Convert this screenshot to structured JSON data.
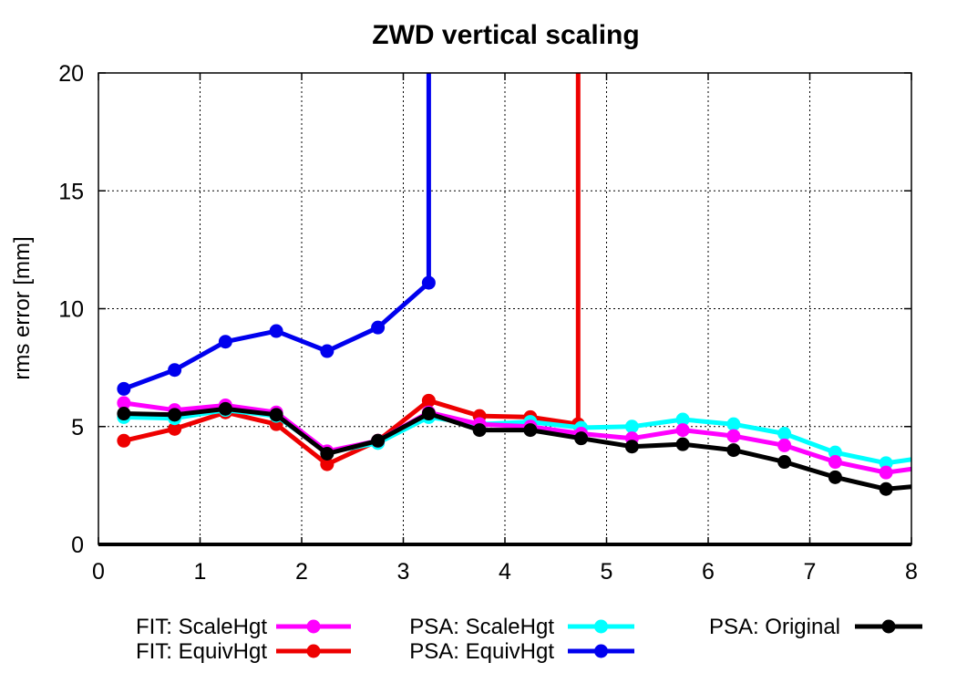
{
  "chart_data": {
    "type": "line",
    "title": "ZWD vertical scaling",
    "xlabel": "",
    "ylabel": "rms error [mm]",
    "xlim": [
      0,
      8
    ],
    "ylim": [
      0,
      20
    ],
    "x_ticks": [
      0,
      1,
      2,
      3,
      4,
      5,
      6,
      7,
      8
    ],
    "y_ticks": [
      0,
      5,
      10,
      15,
      20
    ],
    "grid": true,
    "legend_position": "bottom",
    "series": [
      {
        "name": "FIT: ScaleHgt",
        "color": "#ff00ff",
        "x": [
          0.25,
          0.75,
          1.25,
          1.75,
          2.25,
          2.75,
          3.25,
          3.75,
          4.25,
          4.75,
          5.25,
          5.75,
          6.25,
          6.75,
          7.25,
          7.75,
          8.0
        ],
        "y": [
          6.0,
          5.7,
          5.9,
          5.6,
          3.95,
          4.4,
          5.6,
          5.1,
          5.0,
          4.7,
          4.5,
          4.85,
          4.6,
          4.2,
          3.5,
          3.05,
          3.2
        ]
      },
      {
        "name": "FIT: EquivHgt",
        "color": "#ee0000",
        "x": [
          0.25,
          0.75,
          1.25,
          1.75,
          2.25,
          2.75,
          3.25,
          3.75,
          4.25,
          4.72,
          4.72
        ],
        "y": [
          4.4,
          4.9,
          5.6,
          5.1,
          3.4,
          4.4,
          6.1,
          5.45,
          5.4,
          5.1,
          20.0
        ]
      },
      {
        "name": "PSA: ScaleHgt",
        "color": "#00ffff",
        "x": [
          0.25,
          0.75,
          1.25,
          1.75,
          2.25,
          2.75,
          3.25,
          3.75,
          4.25,
          4.75,
          5.25,
          5.75,
          6.25,
          6.75,
          7.25,
          7.75,
          8.0
        ],
        "y": [
          5.4,
          5.35,
          5.7,
          5.45,
          3.9,
          4.3,
          5.4,
          5.1,
          5.2,
          4.95,
          5.0,
          5.3,
          5.1,
          4.7,
          3.9,
          3.45,
          3.6
        ]
      },
      {
        "name": "PSA: EquivHgt",
        "color": "#0000ee",
        "x": [
          0.25,
          0.75,
          1.25,
          1.75,
          2.25,
          2.75,
          3.25,
          3.25
        ],
        "y": [
          6.6,
          7.4,
          8.6,
          9.05,
          8.2,
          9.2,
          11.1,
          20.0
        ]
      },
      {
        "name": "PSA: Original",
        "color": "#000000",
        "x": [
          0.25,
          0.75,
          1.25,
          1.75,
          2.25,
          2.75,
          3.25,
          3.75,
          4.25,
          4.75,
          5.25,
          5.75,
          6.25,
          6.75,
          7.25,
          7.75,
          8.0
        ],
        "y": [
          5.55,
          5.5,
          5.75,
          5.5,
          3.85,
          4.4,
          5.55,
          4.85,
          4.85,
          4.5,
          4.15,
          4.25,
          4.0,
          3.5,
          2.85,
          2.35,
          2.45
        ]
      }
    ]
  }
}
